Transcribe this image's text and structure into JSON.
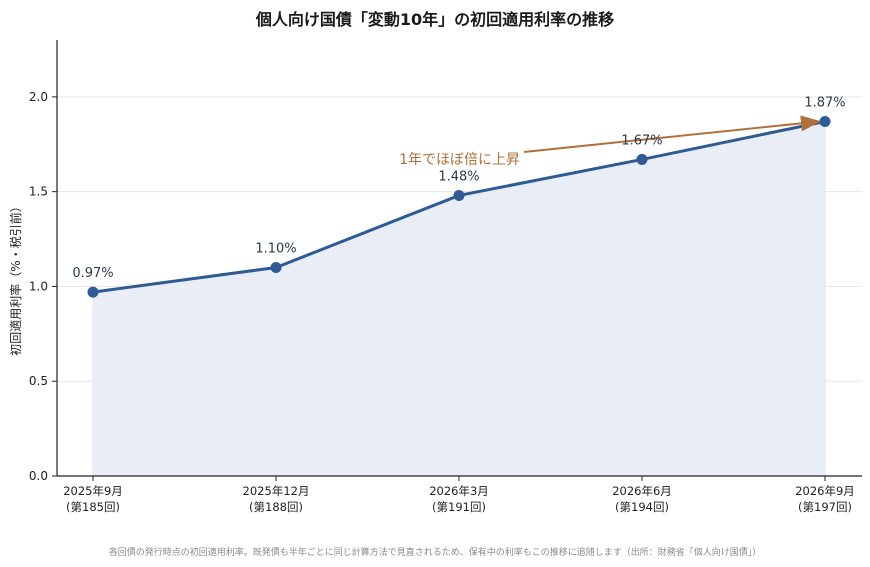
{
  "chart_data": {
    "type": "line",
    "title": "個人向け国債「変動10年」の初回適用利率の推移",
    "ylabel": "初回適用利率（%・税引前）",
    "xlabel": "",
    "ylim": [
      0,
      2.3
    ],
    "yticks": [
      "0.0",
      "0.5",
      "1.0",
      "1.5",
      "2.0"
    ],
    "ytick_values": [
      0,
      0.5,
      1.0,
      1.5,
      2.0
    ],
    "grid": true,
    "categories": [
      {
        "line1": "2025年9月",
        "line2": "(第185回)"
      },
      {
        "line1": "2025年12月",
        "line2": "(第188回)"
      },
      {
        "line1": "2026年3月",
        "line2": "(第191回)"
      },
      {
        "line1": "2026年6月",
        "line2": "(第194回)"
      },
      {
        "line1": "2026年9月",
        "line2": "(第197回)"
      }
    ],
    "values": [
      0.97,
      1.1,
      1.48,
      1.67,
      1.87
    ],
    "data_labels": [
      "0.97%",
      "1.10%",
      "1.48%",
      "1.67%",
      "1.87%"
    ],
    "annotation": {
      "text": "1年でほぼ倍に上昇",
      "target_index": 4
    },
    "colors": {
      "line": "#2e5b94",
      "fill": "#e9eef6",
      "annotation": "#b0703a",
      "grid": "#e6e6e6"
    }
  },
  "footnote": "各回債の発行時点の初回適用利率。既発債も半年ごとに同じ計算方法で見直されるため、保有中の利率もこの推移に追随します（出所：財務省「個人向け国債」）"
}
